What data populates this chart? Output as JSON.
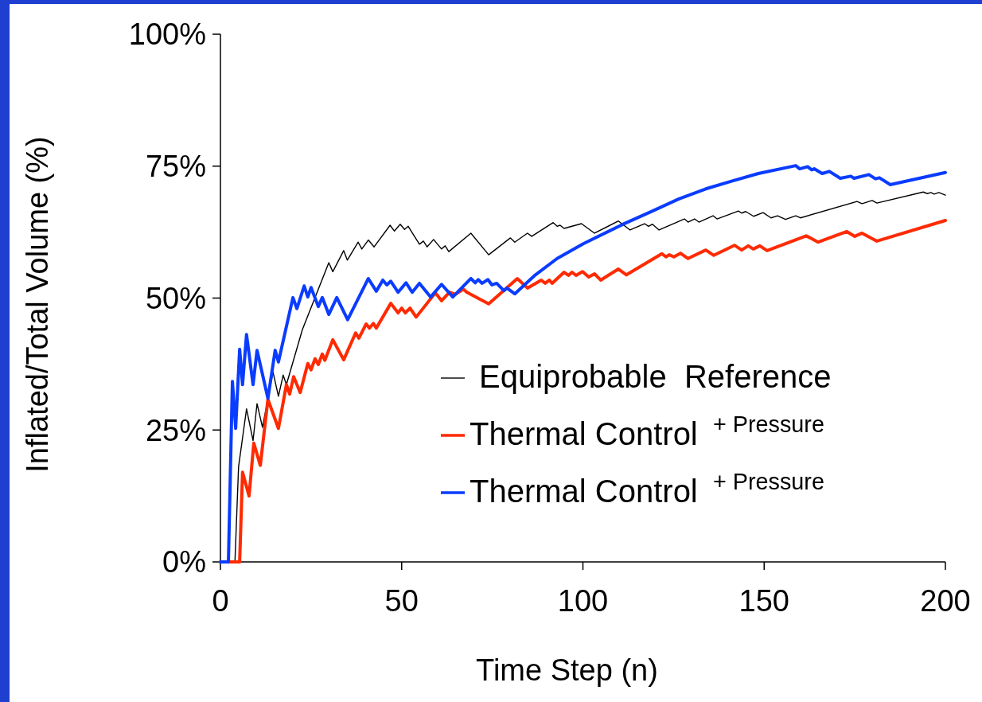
{
  "chart_data": {
    "type": "line",
    "xlabel": "Time Step (n)",
    "ylabel": "Inflated/Total Volume (%)",
    "xlim": [
      0,
      200
    ],
    "xticks": [
      0,
      50,
      100,
      150,
      200
    ],
    "ylim": [
      0,
      100
    ],
    "yticks": [
      {
        "value": 0,
        "label": "0%"
      },
      {
        "value": 25,
        "label": "25%"
      },
      {
        "value": 50,
        "label": "50%"
      },
      {
        "value": 75,
        "label": "75%"
      },
      {
        "value": 100,
        "label": "100%"
      }
    ],
    "grid": false,
    "legend": "bottom right",
    "marker": "none",
    "line_style": "solid",
    "series": [
      {
        "name": "Equiprobable  Reference",
        "color": "#000000",
        "x": [
          0,
          4,
          5,
          7.2,
          9,
          10.1,
          11.6,
          14.5,
          16,
          17.3,
          18.2,
          22.6,
          29.9,
          31,
          34,
          35,
          38,
          39,
          40.8,
          42.4,
          46.8,
          48,
          49.6,
          50.8,
          51.8,
          54.9,
          56,
          57,
          58.8,
          61,
          62,
          63,
          69.1,
          74,
          80,
          81.2,
          84.7,
          85.9,
          91.8,
          92.9,
          93.7,
          94.8,
          99.6,
          103.2,
          109.8,
          113,
          117,
          118.1,
          119.2,
          121,
          128,
          129,
          130.8,
          132,
          135.9,
          137,
          142.9,
          143.8,
          144.9,
          147.1,
          149.7,
          151.9,
          153.7,
          155.9,
          158.7,
          160,
          175.6,
          177,
          179.8,
          181.1,
          193.9,
          195,
          196,
          196.9,
          198.2,
          200
        ],
        "values": [
          0,
          0,
          18,
          29,
          23,
          30,
          25.5,
          36,
          31.4,
          35.4,
          33.6,
          44,
          56.7,
          55,
          59,
          57.2,
          60.6,
          59.3,
          61,
          59.7,
          63.8,
          62.7,
          64,
          63,
          63.6,
          60.2,
          60.8,
          59.7,
          61.1,
          59.3,
          59.9,
          58.8,
          62.3,
          58.2,
          61.4,
          60.6,
          62.3,
          61.7,
          64.3,
          63.6,
          63.8,
          63.2,
          64.1,
          62.3,
          64.6,
          62.9,
          64.1,
          63.6,
          64,
          62.9,
          65,
          64.4,
          65,
          64.4,
          65.6,
          65,
          66.5,
          66.1,
          66.4,
          65.5,
          66.2,
          65.2,
          65.6,
          64.9,
          65.6,
          65.2,
          68.3,
          67.9,
          68.5,
          68,
          70.1,
          69.8,
          70,
          69.7,
          70,
          69.5
        ]
      },
      {
        "name": "Thermal Control $^{+ Pressure}$",
        "color": "#ff2a00",
        "x": [
          0,
          5.3,
          6.1,
          7.9,
          9.2,
          11,
          13.1,
          16,
          18.2,
          19.1,
          20.2,
          22,
          24.1,
          25,
          26.1,
          27,
          28.1,
          28.8,
          31,
          34,
          37.3,
          38.2,
          40.2,
          41.1,
          42.2,
          43,
          47,
          49,
          50,
          51,
          52.3,
          54,
          59.3,
          61,
          63.2,
          64.8,
          67,
          68,
          74,
          81.9,
          84.7,
          88.5,
          89.6,
          90.7,
          91.5,
          94.8,
          96,
          97,
          98.1,
          99.9,
          101.6,
          103.2,
          104.9,
          109.8,
          112,
          121.8,
          122.9,
          123.8,
          125.1,
          126.9,
          129,
          133.9,
          136.1,
          141.8,
          143.8,
          145.6,
          147,
          148.8,
          150.8,
          161.6,
          164.9,
          172.8,
          175,
          177,
          181.1,
          200
        ],
        "values": [
          0,
          0,
          17,
          12.5,
          22.5,
          18.3,
          30.8,
          25.3,
          33.6,
          31.8,
          35.1,
          32.1,
          37.6,
          36.4,
          38.5,
          37.4,
          39.4,
          38.2,
          42.1,
          38.3,
          43.4,
          42.4,
          45.1,
          44.3,
          45.2,
          44.3,
          49,
          47.2,
          48.1,
          47.2,
          48.1,
          46.4,
          51,
          49.5,
          51.1,
          50.7,
          51.7,
          51.1,
          48.9,
          53.7,
          51.9,
          53.4,
          52.8,
          53.4,
          52.8,
          54.9,
          54.3,
          54.9,
          54.3,
          55,
          54,
          54.6,
          53.4,
          55.5,
          54.4,
          58.4,
          57.8,
          58.2,
          57.8,
          58.5,
          57.5,
          59.1,
          58.1,
          60,
          59.1,
          59.9,
          59.3,
          59.9,
          59,
          61.8,
          60.6,
          62.6,
          61.7,
          62.3,
          60.8,
          64.7
        ]
      },
      {
        "name": "Thermal Control $^{+ Pressure}$",
        "color": "#0a3cff",
        "x": [
          0,
          2.2,
          3.3,
          4.2,
          5.3,
          6.1,
          7.2,
          9,
          10.1,
          13.1,
          15.1,
          16,
          20,
          21.1,
          23.1,
          24.1,
          25,
          27,
          28.1,
          29.9,
          32.1,
          35.1,
          40.8,
          43,
          44.8,
          45.9,
          47,
          49,
          51.2,
          52.9,
          54.9,
          58,
          61,
          64.1,
          69.1,
          70.3,
          71.1,
          72.2,
          73.8,
          74.9,
          76.2,
          78.2,
          79,
          81.2,
          86.9,
          92.9,
          100.1,
          111.1,
          119.2,
          126.5,
          133.9,
          141.2,
          148.4,
          158.7,
          159.8,
          162,
          163.1,
          163.8,
          166,
          168,
          171,
          173.9,
          174.8,
          178.9,
          180.7,
          181.8,
          184.8,
          200
        ],
        "values": [
          0,
          0,
          34.2,
          25.3,
          40.3,
          33.6,
          43.1,
          33.6,
          40.1,
          31,
          40.1,
          37.9,
          50.1,
          48,
          52.3,
          50.2,
          52,
          48.4,
          50.1,
          46.9,
          50.1,
          45.9,
          53.7,
          51.3,
          53.4,
          52.5,
          53.2,
          51.1,
          52.9,
          51.1,
          52.8,
          50.2,
          52.6,
          50.2,
          53.7,
          52.9,
          53.5,
          52.8,
          53.5,
          52.5,
          52.8,
          51.4,
          51.9,
          50.8,
          54.4,
          57.5,
          60.3,
          64,
          66.5,
          68.8,
          70.7,
          72.2,
          73.6,
          75.1,
          74.5,
          74.9,
          74.3,
          74.5,
          73.6,
          74,
          72.7,
          73.1,
          72.7,
          73.4,
          72.6,
          72.8,
          71.5,
          73.8
        ]
      }
    ]
  }
}
